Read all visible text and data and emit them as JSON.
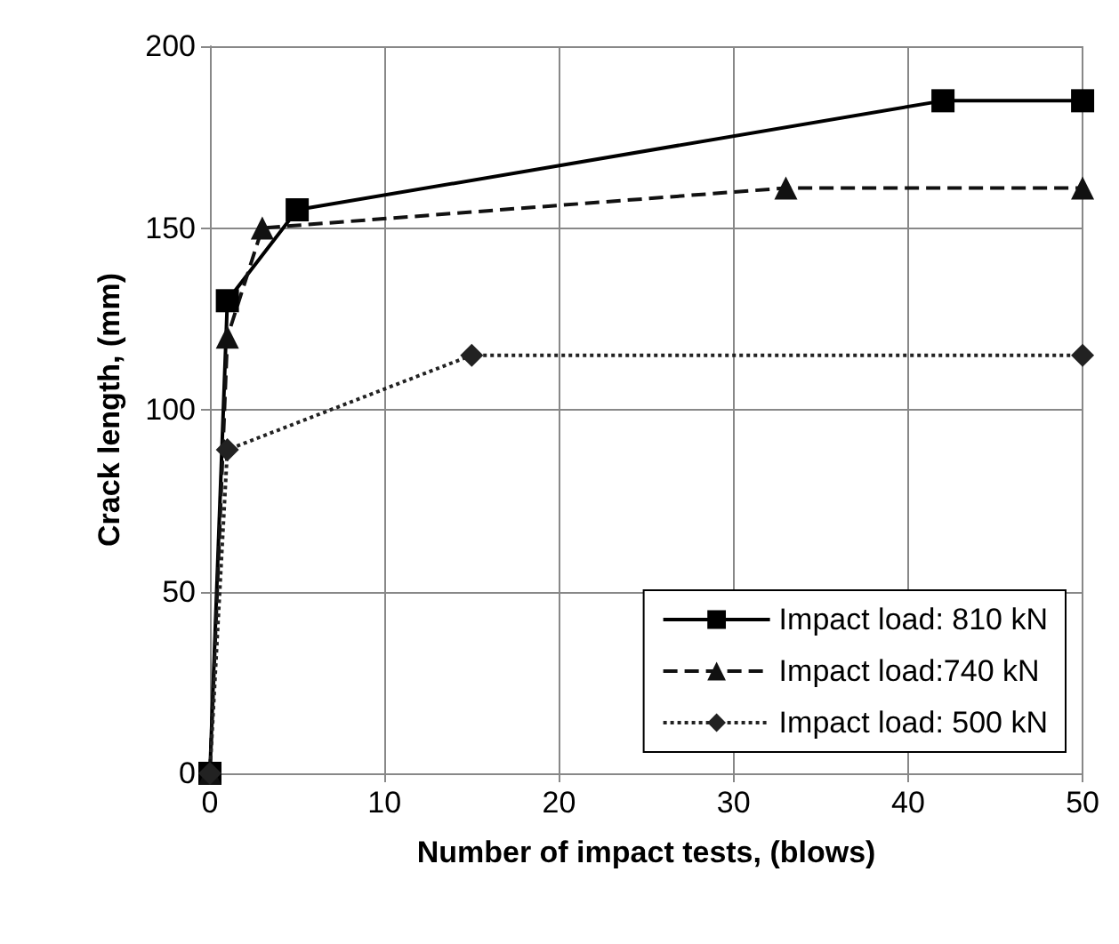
{
  "chart_data": {
    "type": "line",
    "xlabel": "Number of impact tests, (blows)",
    "ylabel": "Crack length, (mm)",
    "xlim": [
      0,
      50
    ],
    "xticks": [
      0,
      10,
      20,
      30,
      40,
      50
    ],
    "ylim": [
      0,
      200
    ],
    "yticks": [
      0,
      50,
      100,
      150,
      200
    ],
    "grid": true,
    "legend": "bottom right",
    "series": [
      {
        "name": "Impact load: 810 kN",
        "color": "#000000",
        "marker": "square",
        "line_style": "solid",
        "x": [
          0,
          1,
          5,
          42,
          50
        ],
        "values": [
          0,
          130,
          155,
          185,
          185
        ]
      },
      {
        "name": "Impact load:740 kN",
        "color": "#111111",
        "marker": "triangle",
        "line_style": "dashed",
        "x": [
          0,
          1,
          3,
          33,
          50
        ],
        "values": [
          0,
          120,
          150,
          161,
          161
        ]
      },
      {
        "name": "Impact load: 500 kN",
        "color": "#222222",
        "marker": "diamond",
        "line_style": "dotted",
        "x": [
          0,
          1,
          15,
          50
        ],
        "values": [
          0,
          89,
          115,
          115
        ]
      }
    ]
  }
}
